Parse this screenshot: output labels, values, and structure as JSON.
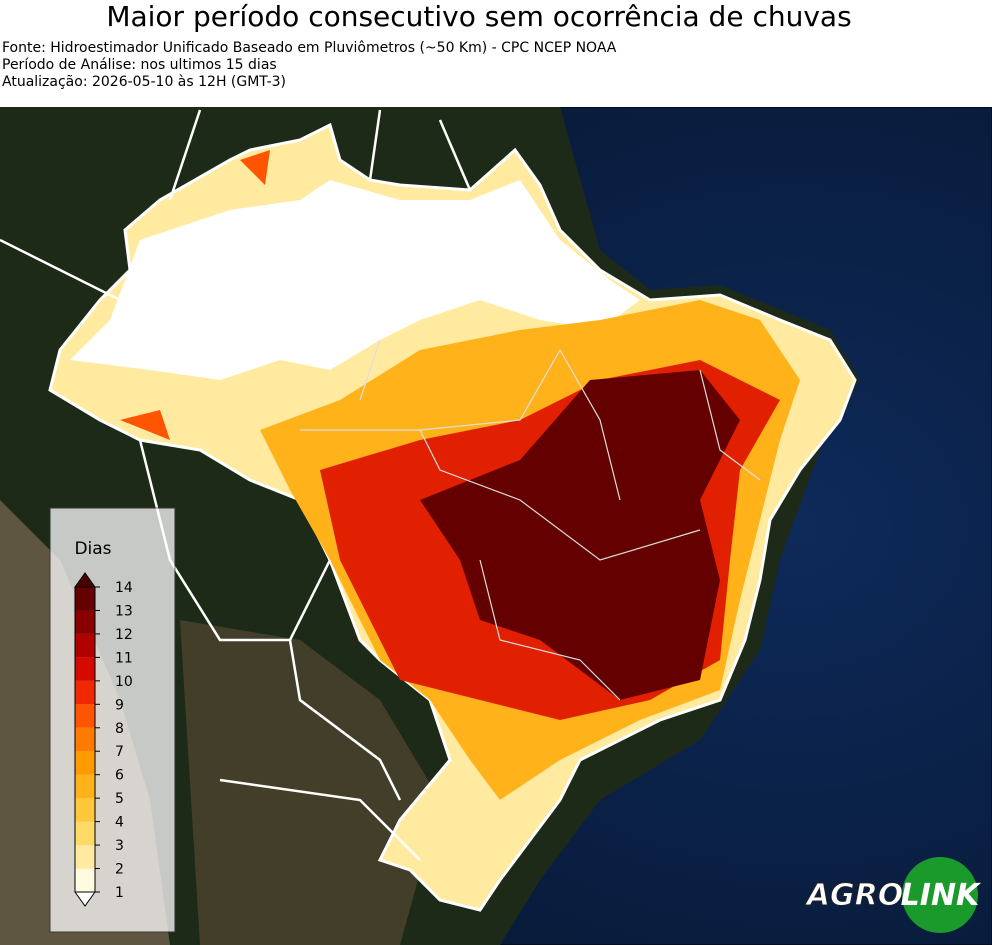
{
  "header": {
    "title": "Maior período consecutivo sem ocorrência de chuvas",
    "lines": [
      "Fonte: Hidroestimador Unificado Baseado em Pluviômetros (~50 Km) - CPC NCEP NOAA",
      "Período de Análise: nos ultimos 15 dias",
      "Atualização: 2026-05-10 às 12H (GMT-3)"
    ]
  },
  "legend": {
    "title": "Dias",
    "ticks": [
      1,
      2,
      3,
      4,
      5,
      6,
      7,
      8,
      9,
      10,
      11,
      12,
      13,
      14
    ],
    "colors": [
      "#fffbe0",
      "#ffeaa0",
      "#ffd966",
      "#ffc73a",
      "#ffb21a",
      "#ff9a00",
      "#ff7a00",
      "#ff5400",
      "#f02800",
      "#d40a00",
      "#b00000",
      "#880000",
      "#650000"
    ],
    "under_color": "#ffffff",
    "over_color": "#4a0000"
  },
  "logo": {
    "left": "AGRO",
    "right": "LINK"
  }
}
